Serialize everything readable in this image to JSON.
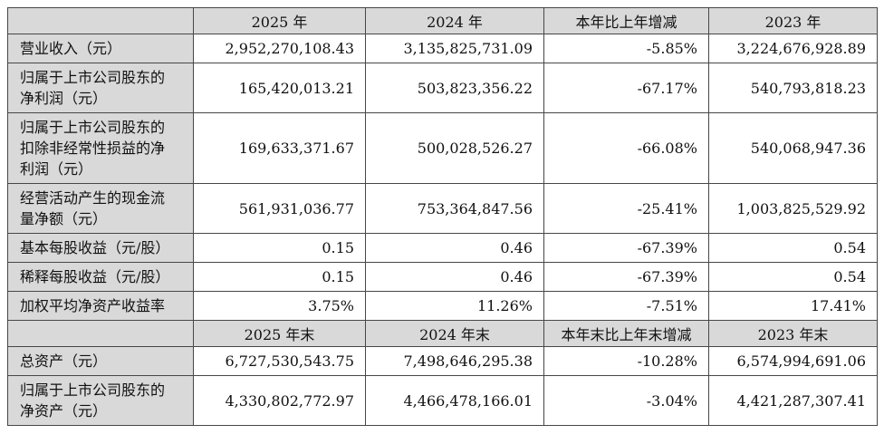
{
  "colors": {
    "header_bg": "#d9d9d9",
    "border": "#474747",
    "text": "#111111",
    "page_bg": "#ffffff"
  },
  "table": {
    "sections": [
      {
        "header": {
          "label": "",
          "cols": [
            "2025 年",
            "2024 年",
            "本年比上年增减",
            "2023 年"
          ]
        },
        "rows": [
          {
            "label": "营业收入（元）",
            "values": [
              "2,952,270,108.43",
              "3,135,825,731.09",
              "-5.85%",
              "3,224,676,928.89"
            ]
          },
          {
            "label": "归属于上市公司股东的净利润（元）",
            "values": [
              "165,420,013.21",
              "503,823,356.22",
              "-67.17%",
              "540,793,818.23"
            ]
          },
          {
            "label": "归属于上市公司股东的扣除非经常性损益的净利润（元）",
            "values": [
              "169,633,371.67",
              "500,028,526.27",
              "-66.08%",
              "540,068,947.36"
            ]
          },
          {
            "label": "经营活动产生的现金流量净额（元）",
            "values": [
              "561,931,036.77",
              "753,364,847.56",
              "-25.41%",
              "1,003,825,529.92"
            ]
          },
          {
            "label": "基本每股收益（元/股）",
            "values": [
              "0.15",
              "0.46",
              "-67.39%",
              "0.54"
            ]
          },
          {
            "label": "稀释每股收益（元/股）",
            "values": [
              "0.15",
              "0.46",
              "-67.39%",
              "0.54"
            ]
          },
          {
            "label": "加权平均净资产收益率",
            "values": [
              "3.75%",
              "11.26%",
              "-7.51%",
              "17.41%"
            ]
          }
        ]
      },
      {
        "header": {
          "label": "",
          "cols": [
            "2025 年末",
            "2024 年末",
            "本年末比上年末增减",
            "2023 年末"
          ]
        },
        "rows": [
          {
            "label": "总资产（元）",
            "values": [
              "6,727,530,543.75",
              "7,498,646,295.38",
              "-10.28%",
              "6,574,994,691.06"
            ]
          },
          {
            "label": "归属于上市公司股东的净资产（元）",
            "values": [
              "4,330,802,772.97",
              "4,466,478,166.01",
              "-3.04%",
              "4,421,287,307.41"
            ]
          }
        ]
      }
    ]
  }
}
